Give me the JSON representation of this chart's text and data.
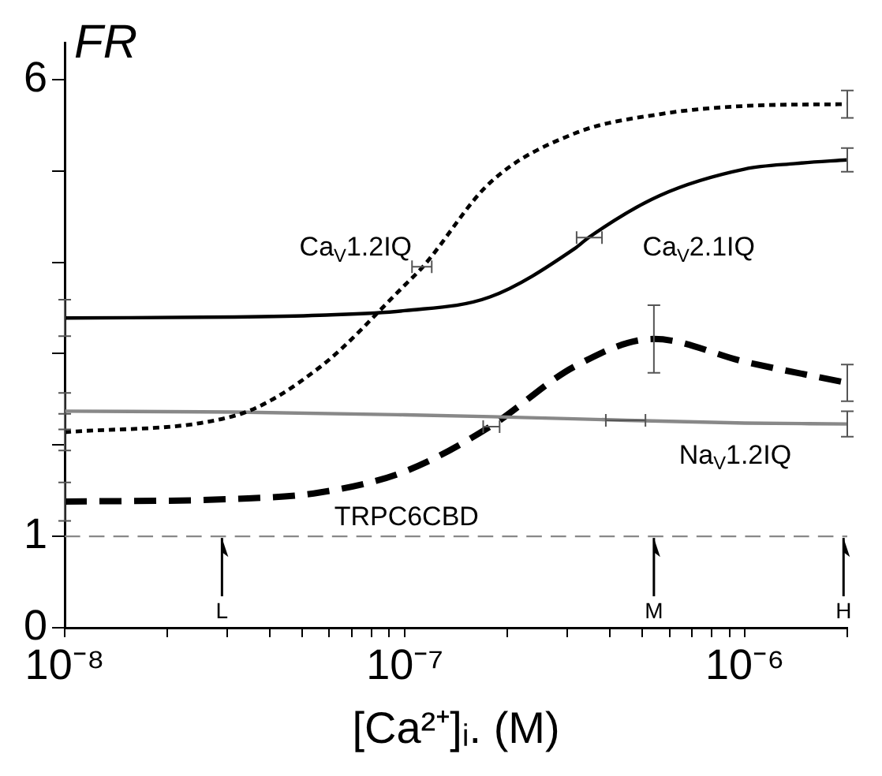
{
  "chart_data": {
    "type": "line",
    "ylabel": "FR",
    "xlabel": "[Ca²⁺]ᵢ. (M)",
    "log": "x",
    "grid": false,
    "legend": false,
    "marker": "none",
    "xlim": [
      1e-08,
      2e-06
    ],
    "xticks": [
      {
        "value": 1e-08,
        "label": "10⁻⁸"
      },
      {
        "value": 2e-08,
        "label": null
      },
      {
        "value": 3e-08,
        "label": null
      },
      {
        "value": 4e-08,
        "label": null
      },
      {
        "value": 5e-08,
        "label": null
      },
      {
        "value": 6e-08,
        "label": null
      },
      {
        "value": 7e-08,
        "label": null
      },
      {
        "value": 8e-08,
        "label": null
      },
      {
        "value": 9e-08,
        "label": null
      },
      {
        "value": 1e-07,
        "label": "10⁻⁷"
      },
      {
        "value": 2e-07,
        "label": null
      },
      {
        "value": 3e-07,
        "label": null
      },
      {
        "value": 4e-07,
        "label": null
      },
      {
        "value": 5e-07,
        "label": null
      },
      {
        "value": 6e-07,
        "label": null
      },
      {
        "value": 7e-07,
        "label": null
      },
      {
        "value": 8e-07,
        "label": null
      },
      {
        "value": 9e-07,
        "label": null
      },
      {
        "value": 1e-06,
        "label": "10⁻⁶"
      },
      {
        "value": 2e-06,
        "label": null
      }
    ],
    "ylim": [
      0,
      6.4
    ],
    "yticks": [
      0,
      1,
      {
        "value": 2,
        "label": null
      },
      {
        "value": 3,
        "label": null
      },
      {
        "value": 4,
        "label": null
      },
      {
        "value": 5,
        "label": null
      },
      6
    ],
    "series": [
      {
        "name": "Ca$_{V}$1.2IQ",
        "color": "#000000",
        "line_style": "dotted",
        "x": [
          1e-08,
          3.16e-08,
          5.62e-08,
          1e-07,
          1.13e-07,
          1.78e-07,
          3.16e-07,
          5.62e-07,
          1e-06,
          2e-06
        ],
        "values": [
          2.14,
          2.32,
          2.85,
          3.75,
          3.95,
          4.87,
          5.41,
          5.62,
          5.71,
          5.73
        ],
        "errors": [
          0.2,
          null,
          null,
          null,
          null,
          null,
          null,
          null,
          null,
          0.15
        ],
        "xerrors": [
          null,
          null,
          null,
          null,
          [
            1.05e-07,
            1.2e-07
          ],
          null,
          null,
          null,
          null,
          null
        ]
      },
      {
        "name": "Ca$_{V}$2.1IQ",
        "color": "#000000",
        "line_style": "solid",
        "x": [
          1e-08,
          3.16e-08,
          5.62e-08,
          1e-07,
          1.78e-07,
          3.16e-07,
          3.47e-07,
          5.62e-07,
          1e-06,
          1.41e-06,
          2e-06
        ],
        "values": [
          3.39,
          3.4,
          3.42,
          3.47,
          3.62,
          4.15,
          4.27,
          4.73,
          5.02,
          5.08,
          5.12
        ],
        "errors": [
          0.2,
          null,
          null,
          null,
          null,
          null,
          null,
          null,
          null,
          null,
          0.13
        ],
        "xerrors": [
          null,
          null,
          null,
          null,
          null,
          null,
          [
            3.2e-07,
            3.8e-07
          ],
          null,
          null,
          null,
          null
        ]
      },
      {
        "name": "Na$_{V}$1.2IQ",
        "color": "#888888",
        "line_style": "solid",
        "x": [
          1e-08,
          3.16e-08,
          1e-07,
          1.8e-07,
          4.5e-07,
          1e-06,
          2e-06
        ],
        "values": [
          2.37,
          2.36,
          2.33,
          2.31,
          2.27,
          2.24,
          2.23
        ],
        "errors": [
          0.2,
          null,
          null,
          null,
          null,
          null,
          0.14
        ],
        "xerrors": [
          null,
          null,
          null,
          null,
          [
            3.9e-07,
            5.1e-07
          ],
          null,
          null
        ]
      },
      {
        "name": "TRPC6CBD",
        "color": "#000000",
        "line_style": "dashed",
        "x": [
          1e-08,
          3.16e-08,
          5.62e-08,
          1e-07,
          1.78e-07,
          3.16e-07,
          5.4e-07,
          1e-06,
          2e-06
        ],
        "values": [
          1.38,
          1.41,
          1.48,
          1.71,
          2.2,
          2.86,
          3.16,
          2.91,
          2.68
        ],
        "errors": [
          0.21,
          null,
          null,
          null,
          null,
          null,
          0.37,
          null,
          0.2
        ],
        "xerrors": [
          null,
          null,
          null,
          null,
          [
            1.7e-07,
            1.9e-07
          ],
          null,
          null,
          null,
          null
        ]
      }
    ],
    "ref_lines": [
      {
        "axis": "y",
        "value": 1,
        "color": "#888888",
        "line_style": "dashed"
      }
    ],
    "annotations": [
      {
        "text": "L",
        "x": 2.9e-08,
        "y": 1
      },
      {
        "text": "M",
        "x": 5.4e-07,
        "y": 1
      },
      {
        "text": "H",
        "x": 1.95e-06,
        "y": 1
      }
    ]
  }
}
